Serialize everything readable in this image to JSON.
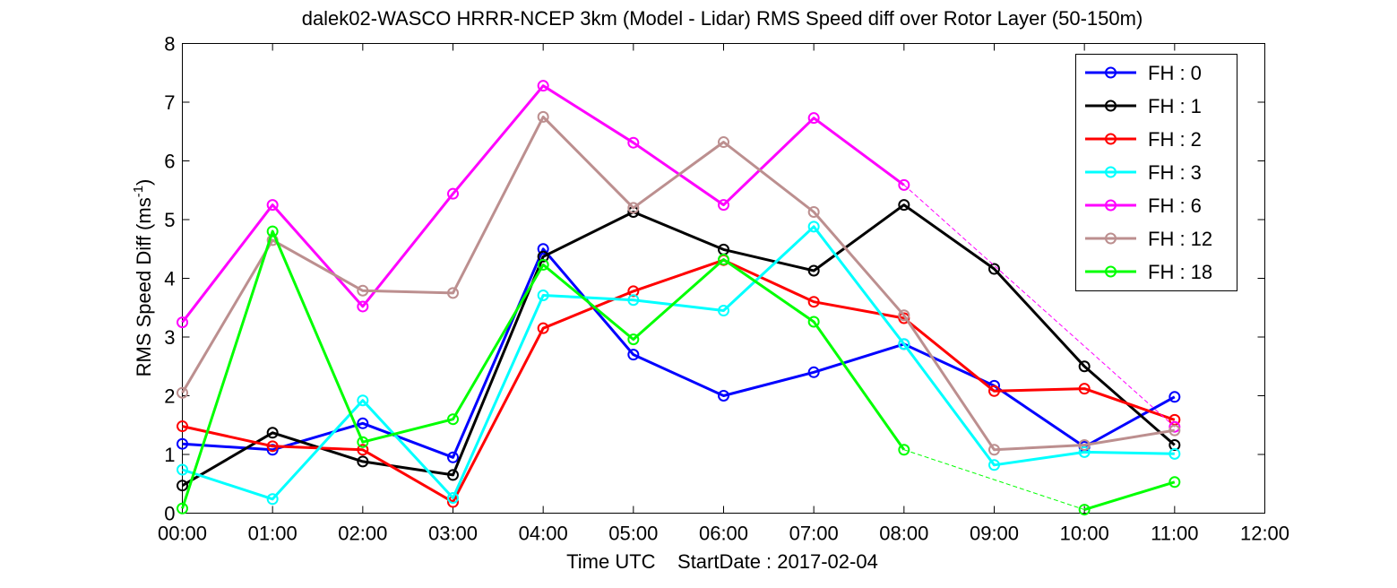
{
  "chart_data": {
    "type": "line",
    "title": "dalek02-WASCO HRRR-NCEP 3km (Model - Lidar) RMS Speed diff over Rotor Layer (50-150m)",
    "xlabel": "Time UTC    StartDate : 2017-02-04",
    "ylabel": "RMS Speed Diff (ms",
    "ylabel_sup": "-1",
    "ylabel_close": ")",
    "x_ticks": [
      "00:00",
      "01:00",
      "02:00",
      "03:00",
      "04:00",
      "05:00",
      "06:00",
      "07:00",
      "08:00",
      "09:00",
      "10:00",
      "11:00",
      "12:00"
    ],
    "y_ticks": [
      "0",
      "1",
      "2",
      "3",
      "4",
      "5",
      "6",
      "7",
      "8"
    ],
    "xlim": [
      0,
      12
    ],
    "ylim": [
      0,
      8
    ],
    "grid": false,
    "legend_position": "top-right",
    "series": [
      {
        "name": "FH : 0",
        "color": "#0000ff",
        "x": [
          0,
          1,
          2,
          3,
          4,
          5,
          6,
          7,
          8,
          9,
          10,
          11
        ],
        "values": [
          1.18,
          1.08,
          1.53,
          0.95,
          4.5,
          2.7,
          2.0,
          2.4,
          2.88,
          2.17,
          1.13,
          1.98
        ],
        "gap_after_x": null
      },
      {
        "name": "FH : 1",
        "color": "#000000",
        "x": [
          0,
          1,
          2,
          3,
          4,
          5,
          6,
          7,
          8,
          9,
          10,
          11
        ],
        "values": [
          0.47,
          1.37,
          0.88,
          0.65,
          4.37,
          5.13,
          4.49,
          4.13,
          5.25,
          4.16,
          2.5,
          1.16
        ],
        "gap_after_x": null
      },
      {
        "name": "FH : 2",
        "color": "#ff0000",
        "x": [
          0,
          1,
          2,
          3,
          4,
          5,
          6,
          7,
          8,
          9,
          10,
          11
        ],
        "values": [
          1.48,
          1.14,
          1.08,
          0.19,
          3.15,
          3.78,
          4.31,
          3.6,
          3.32,
          2.08,
          2.12,
          1.59
        ],
        "gap_after_x": null
      },
      {
        "name": "FH : 3",
        "color": "#00ffff",
        "x": [
          0,
          1,
          2,
          3,
          4,
          5,
          6,
          7,
          8,
          9,
          10,
          11
        ],
        "values": [
          0.74,
          0.24,
          1.92,
          0.26,
          3.71,
          3.63,
          3.45,
          4.88,
          2.88,
          0.82,
          1.04,
          1.01
        ],
        "gap_after_x": null
      },
      {
        "name": "FH : 6",
        "color": "#ff00ff",
        "x": [
          0,
          1,
          2,
          3,
          4,
          5,
          6,
          7,
          8,
          11
        ],
        "values": [
          3.25,
          5.25,
          3.52,
          5.44,
          7.28,
          6.31,
          5.25,
          6.73,
          5.59,
          1.47
        ],
        "gap_after_x": 8
      },
      {
        "name": "FH : 12",
        "color": "#bc8f8f",
        "x": [
          0,
          1,
          2,
          3,
          4,
          5,
          6,
          7,
          8,
          9,
          10,
          11
        ],
        "values": [
          2.05,
          4.65,
          3.79,
          3.75,
          6.75,
          5.2,
          6.32,
          5.13,
          3.37,
          1.08,
          1.16,
          1.41
        ],
        "gap_after_x": null
      },
      {
        "name": "FH : 18",
        "color": "#00ff00",
        "x": [
          0,
          1,
          2,
          3,
          4,
          5,
          6,
          7,
          8,
          10,
          11
        ],
        "values": [
          0.08,
          4.8,
          1.21,
          1.6,
          4.23,
          2.96,
          4.32,
          3.26,
          1.08,
          0.06,
          0.53
        ],
        "gap_after_x": 8
      }
    ]
  }
}
